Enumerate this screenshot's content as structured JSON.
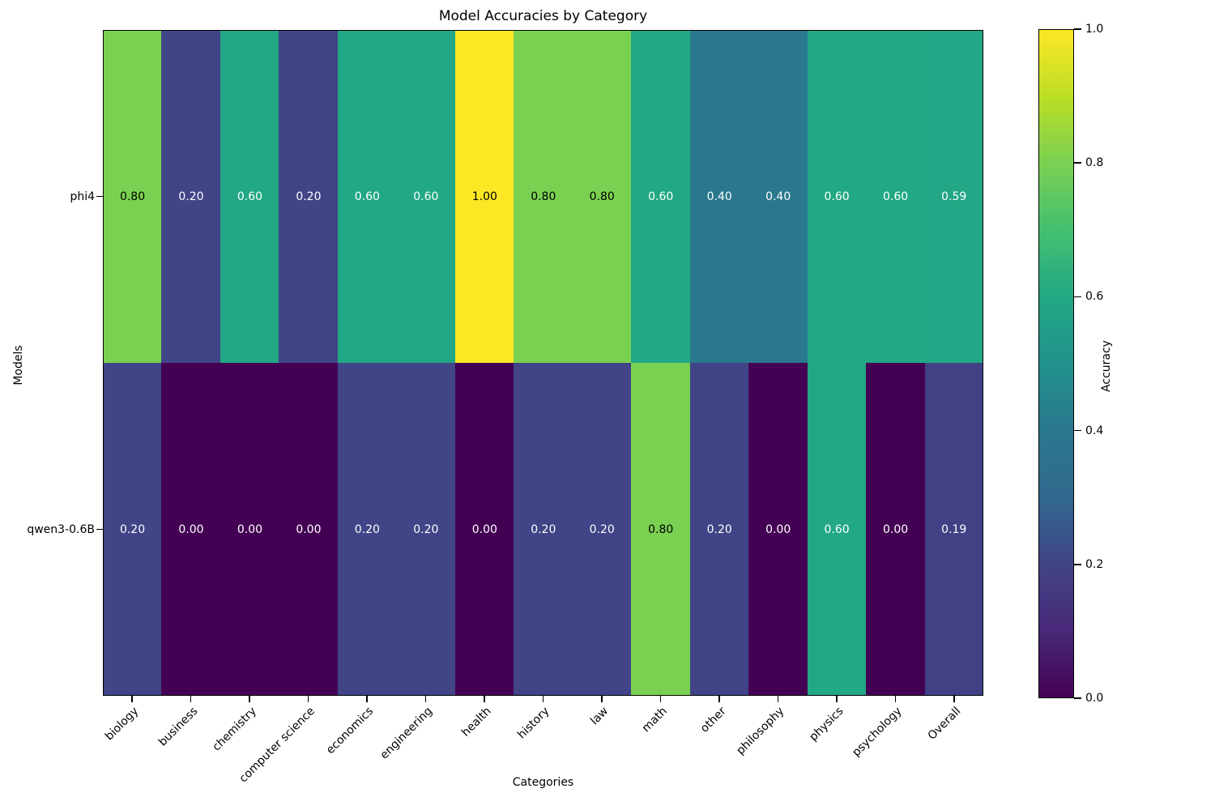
{
  "chart_data": {
    "type": "heatmap",
    "title": "Model Accuracies by Category",
    "xlabel": "Categories",
    "ylabel": "Models",
    "colorbar_label": "Accuracy",
    "colormap": "viridis",
    "vmin": 0.0,
    "vmax": 1.0,
    "grid": false,
    "categories": [
      "biology",
      "business",
      "chemistry",
      "computer science",
      "economics",
      "engineering",
      "health",
      "history",
      "law",
      "math",
      "other",
      "philosophy",
      "physics",
      "psychology",
      "Overall"
    ],
    "models": [
      "phi4",
      "qwen3-0.6B"
    ],
    "series": [
      {
        "name": "phi4",
        "values": [
          0.8,
          0.2,
          0.6,
          0.2,
          0.6,
          0.6,
          1.0,
          0.8,
          0.8,
          0.6,
          0.4,
          0.4,
          0.6,
          0.6,
          0.59
        ]
      },
      {
        "name": "qwen3-0.6B",
        "values": [
          0.2,
          0.0,
          0.0,
          0.0,
          0.2,
          0.2,
          0.0,
          0.2,
          0.2,
          0.8,
          0.2,
          0.0,
          0.6,
          0.0,
          0.19
        ]
      }
    ],
    "colorbar_ticks": [
      {
        "value": 1.0,
        "label": "1.0"
      },
      {
        "value": 0.8,
        "label": "0.8"
      },
      {
        "value": 0.6,
        "label": "0.6"
      },
      {
        "value": 0.4,
        "label": "0.4"
      },
      {
        "value": 0.2,
        "label": "0.2"
      },
      {
        "value": 0.0,
        "label": "0.0"
      }
    ],
    "colormap_stops": [
      "#440154",
      "#482878",
      "#414487",
      "#31688e",
      "#2a788e",
      "#21918c",
      "#22a884",
      "#44bf70",
      "#7ad151",
      "#bdde26",
      "#fde725"
    ]
  }
}
